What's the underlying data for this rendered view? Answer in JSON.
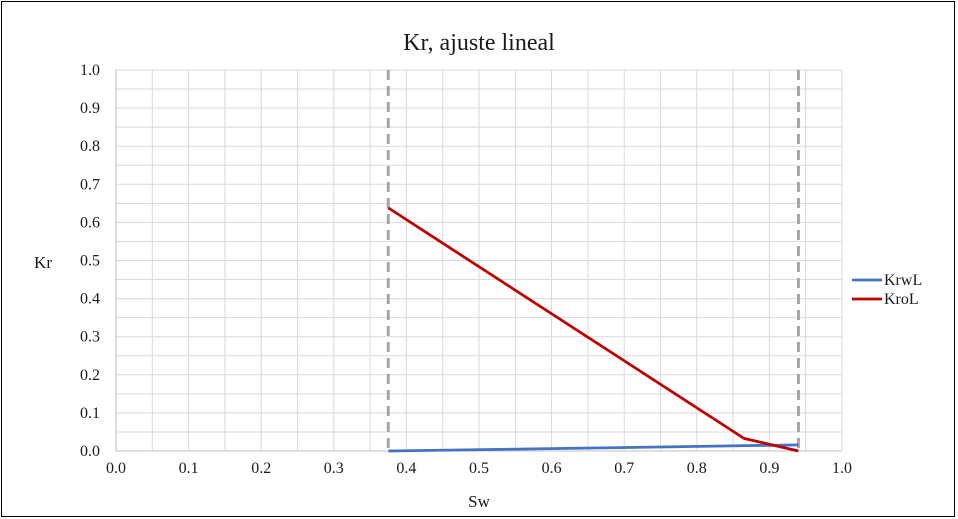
{
  "chart_data": {
    "type": "line",
    "title": "Kr, ajuste lineal",
    "xlabel": "Sw",
    "ylabel": "Kr",
    "xlim": [
      0.0,
      1.0
    ],
    "ylim": [
      0.0,
      1.0
    ],
    "x_ticks": [
      "0.0",
      "0.1",
      "0.2",
      "0.3",
      "0.4",
      "0.5",
      "0.6",
      "0.7",
      "0.8",
      "0.9",
      "1.0"
    ],
    "y_ticks": [
      "0.0",
      "0.1",
      "0.2",
      "0.3",
      "0.4",
      "0.5",
      "0.6",
      "0.7",
      "0.8",
      "0.9",
      "1.0"
    ],
    "grid": true,
    "minor_grid_step": 0.05,
    "legend_position": "right",
    "reference_lines_x": [
      0.375,
      0.94
    ],
    "series": [
      {
        "name": "KrwL",
        "color": "#4472C4",
        "x": [
          0.375,
          0.94
        ],
        "y": [
          0.0,
          0.016
        ]
      },
      {
        "name": "KroL",
        "color": "#C00000",
        "x": [
          0.375,
          0.865,
          0.94
        ],
        "y": [
          0.638,
          0.033,
          0.0
        ]
      }
    ]
  }
}
